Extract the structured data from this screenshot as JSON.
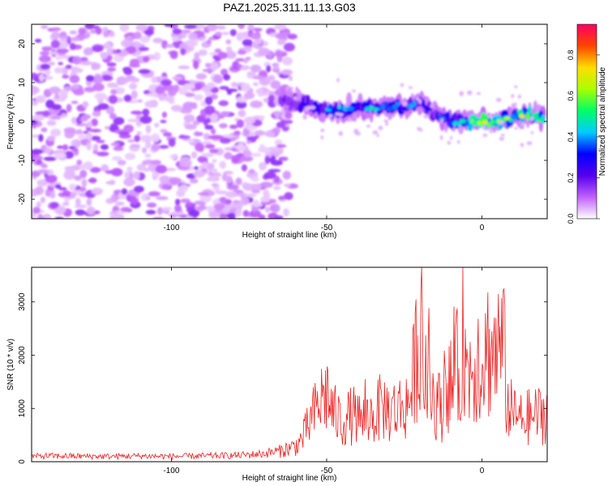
{
  "title": "PAZ1.2025.311.11.13.G03",
  "chart_data": [
    {
      "type": "heatmap",
      "title": "PAZ1.2025.311.11.13.G03",
      "xlabel": "Height of straight line (km)",
      "ylabel": "Frequency (Hz)",
      "xlim": [
        -145,
        21
      ],
      "ylim": [
        -25,
        25
      ],
      "x_ticks": [
        -100,
        -50,
        0
      ],
      "x_tick_labels": [
        "-100",
        "-50",
        "0"
      ],
      "y_ticks": [
        -20,
        -10,
        0,
        10,
        20
      ],
      "y_tick_labels": [
        "-20",
        "-10",
        "0",
        "10",
        "20"
      ],
      "colorbar": {
        "label": "Normalized spectral amplitude",
        "range": [
          0,
          0.95
        ],
        "ticks": [
          0.0,
          0.2,
          0.4,
          0.6,
          0.8
        ],
        "tick_labels": [
          "0.0",
          "0.2",
          "0.4",
          "0.6",
          "0.8"
        ],
        "colors": [
          "#ffffff",
          "#c060ff",
          "#5500ee",
          "#0000ff",
          "#00ccff",
          "#00ff66",
          "#aaff00",
          "#ffdd00",
          "#ff4400",
          "#ff0066"
        ]
      },
      "signal_ridge": {
        "x": [
          -65,
          -60,
          -55,
          -50,
          -45,
          -40,
          -35,
          -30,
          -25,
          -20,
          -15,
          -10,
          -5,
          0,
          5,
          10,
          15,
          20
        ],
        "frequency": [
          6,
          5,
          4,
          3,
          3,
          4,
          3,
          4,
          4,
          5,
          2,
          0,
          0,
          0,
          0,
          1,
          2,
          1
        ],
        "peak_amplitude": [
          0.2,
          0.3,
          0.4,
          0.5,
          0.5,
          0.45,
          0.5,
          0.4,
          0.45,
          0.4,
          0.35,
          0.5,
          0.6,
          0.85,
          0.7,
          0.6,
          0.85,
          0.7
        ]
      },
      "noise_region": {
        "x_range": [
          -145,
          -65
        ],
        "frequency_range": [
          -25,
          25
        ],
        "typical_amplitude": 0.1
      }
    },
    {
      "type": "line",
      "xlabel": "Height of straight line (km)",
      "ylabel": "SNR (10 * v/v)",
      "xlim": [
        -145,
        21
      ],
      "ylim": [
        0,
        3650
      ],
      "x_ticks": [
        -100,
        -50,
        0
      ],
      "x_tick_labels": [
        "-100",
        "-50",
        "0"
      ],
      "y_ticks": [
        0,
        1000,
        2000,
        3000
      ],
      "y_tick_labels": [
        "0",
        "1000",
        "2000",
        "3000"
      ],
      "series": [
        {
          "name": "SNR",
          "color": "#ee2222",
          "x": [
            -145,
            -140,
            -130,
            -120,
            -110,
            -100,
            -90,
            -80,
            -75,
            -70,
            -65,
            -60,
            -58,
            -55,
            -52,
            -50,
            -48,
            -45,
            -42,
            -40,
            -38,
            -35,
            -32,
            -30,
            -28,
            -25,
            -23,
            -21,
            -20,
            -18,
            -15,
            -13,
            -12,
            -10,
            -8,
            -7,
            -6,
            -5,
            -3,
            -1,
            0,
            2,
            4,
            5,
            6,
            7,
            8,
            10,
            12,
            15,
            18,
            21
          ],
          "values": [
            110,
            120,
            115,
            110,
            120,
            110,
            120,
            130,
            145,
            170,
            230,
            330,
            480,
            900,
            1300,
            1500,
            1050,
            850,
            1000,
            950,
            900,
            1000,
            1200,
            1100,
            1100,
            1200,
            1350,
            2400,
            2900,
            1600,
            1350,
            1100,
            1900,
            1600,
            2000,
            1500,
            3400,
            1800,
            2100,
            2300,
            2200,
            2450,
            2300,
            2450,
            2400,
            2500,
            1300,
            1000,
            900,
            950,
            1000,
            1050
          ]
        }
      ]
    }
  ]
}
